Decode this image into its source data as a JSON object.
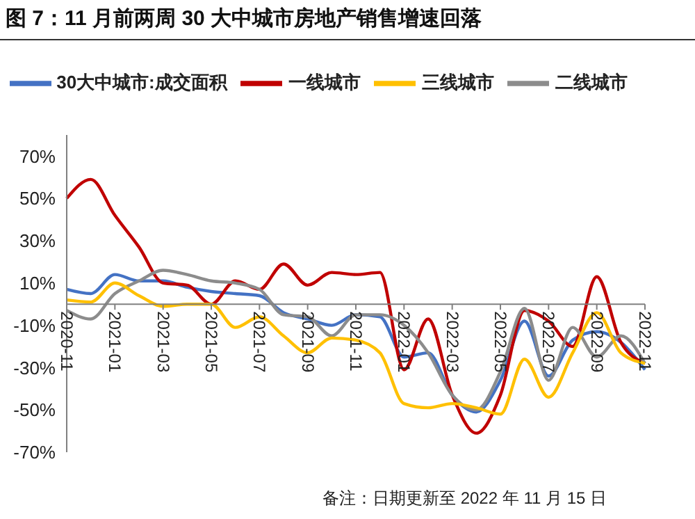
{
  "chart_data": {
    "type": "line",
    "title": "图 7：11 月前两周 30 大中城市房地产销售增速回落",
    "categories": [
      "2020-11",
      null,
      "2021-01",
      null,
      "2021-03",
      null,
      "2021-05",
      null,
      "2021-07",
      null,
      "2021-09",
      null,
      "2021-11",
      null,
      "2022-01",
      null,
      "2022-03",
      null,
      "2022-05",
      null,
      "2022-07",
      null,
      "2022-09",
      null,
      "2022-11"
    ],
    "series": [
      {
        "name": "30大中城市:成交面积",
        "color": "#4472c4",
        "values": [
          7,
          5,
          14,
          11,
          11,
          8,
          6,
          5,
          4,
          -4,
          -7,
          -10,
          -5,
          -6,
          -25,
          -23,
          -43,
          -51,
          -36,
          -8,
          -34,
          -17,
          -13,
          -18,
          -31
        ]
      },
      {
        "name": "一线城市",
        "color": "#c00000",
        "values": [
          50,
          59,
          42,
          27,
          10,
          9,
          0,
          11,
          7,
          19,
          9,
          15,
          14,
          15,
          -31,
          -7,
          -43,
          -61,
          -43,
          -3,
          -8,
          -20,
          13,
          -18,
          -28
        ]
      },
      {
        "name": "二线城市",
        "color": "#8c8c8c",
        "values": [
          -3,
          -7,
          5,
          11,
          16,
          14,
          11,
          10,
          7,
          -5,
          -6,
          -15,
          -5,
          -5,
          -10,
          -23,
          -43,
          -50,
          -32,
          -2,
          -36,
          -11,
          -25,
          -15,
          -28
        ]
      },
      {
        "name": "三线城市",
        "color": "#ffc000",
        "values": [
          2,
          1,
          10,
          4,
          -1,
          0,
          0,
          -11,
          -6,
          -15,
          -23,
          -16,
          -17,
          -23,
          -47,
          -49,
          -47,
          -49,
          -52,
          -26,
          -44,
          -23,
          -4,
          -23,
          -28
        ]
      }
    ],
    "ylim": [
      -70,
      80
    ],
    "yticks": [
      {
        "value": -70,
        "label": "-70%"
      },
      {
        "value": -50,
        "label": "-50%"
      },
      {
        "value": -30,
        "label": "-30%"
      },
      {
        "value": -10,
        "label": "-10%"
      },
      {
        "value": 10,
        "label": "10%"
      },
      {
        "value": 30,
        "label": "30%"
      },
      {
        "value": 50,
        "label": "50%"
      },
      {
        "value": 70,
        "label": "70%"
      }
    ],
    "legend": "top",
    "grid": false,
    "marker": "none",
    "line_style": "solid",
    "annotations": [
      "备注：日期更新至 2022 年 11 月 15 日"
    ]
  }
}
